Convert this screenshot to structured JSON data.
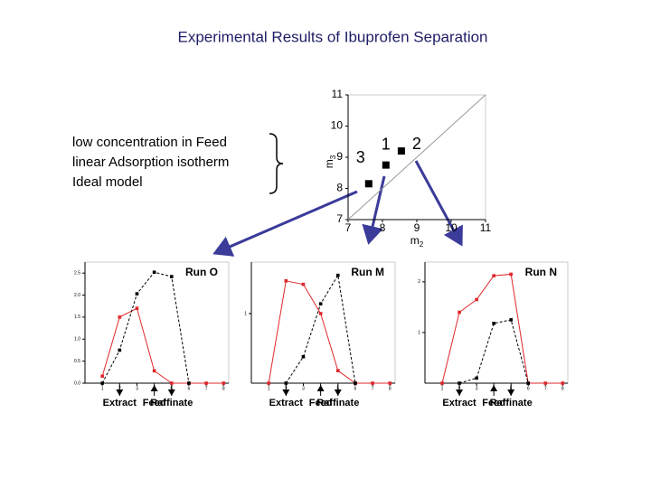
{
  "title": "Experimental Results of Ibuprofen Separation",
  "conditions": [
    "low concentration  in Feed",
    "linear Adsorption isotherm",
    "Ideal model"
  ],
  "chart_data": [
    {
      "type": "scatter",
      "x_label": {
        "base": "m",
        "sub": "2"
      },
      "y_label": {
        "base": "m",
        "sub": "3"
      },
      "xlim": [
        7,
        11
      ],
      "ylim": [
        7,
        11
      ],
      "xticks": [
        7,
        8,
        9,
        10,
        11
      ],
      "yticks": [
        7,
        8,
        9,
        10,
        11
      ],
      "diagonal": true,
      "color": "#000000",
      "x": [
        8.1,
        8.55,
        7.6
      ],
      "values": [
        8.75,
        9.2,
        8.15
      ],
      "point_labels": [
        "1",
        "2",
        "3"
      ]
    },
    {
      "type": "line",
      "title": "Run O",
      "x": [
        1,
        2,
        3,
        4,
        5,
        6,
        7,
        8
      ],
      "xlim": [
        0,
        8.3
      ],
      "xticks": [
        1,
        2,
        3,
        4,
        5,
        6,
        7,
        8
      ],
      "ylim": [
        0,
        2.75
      ],
      "yticks": [
        {
          "value": 0,
          "label": "0.0"
        },
        0.5,
        {
          "value": 1,
          "label": "1.0"
        },
        1.5,
        {
          "value": 2,
          "label": "2.0"
        },
        2.5
      ],
      "series": [
        {
          "color": "#e0262b",
          "dash": false,
          "values": [
            0.16,
            1.5,
            1.7,
            0.28,
            0,
            0,
            0,
            0
          ]
        },
        {
          "color": "#000000",
          "dash": true,
          "values": [
            0,
            0.75,
            2.03,
            2.52,
            2.42,
            0,
            null,
            null
          ]
        }
      ],
      "annotations": [
        {
          "text": "Extract",
          "x": 2,
          "arrow": "down"
        },
        {
          "text": "Feed",
          "x": 4,
          "arrow": "up"
        },
        {
          "text": "Raffinate",
          "x": 5,
          "arrow": "down"
        }
      ]
    },
    {
      "type": "line",
      "title": "Run M",
      "x": [
        1,
        2,
        3,
        4,
        5,
        6,
        7,
        8
      ],
      "xlim": [
        0,
        8.3
      ],
      "xticks": [
        1,
        2,
        3,
        4,
        5,
        6,
        7,
        8
      ],
      "ylim": [
        0,
        1.74
      ],
      "yticks": [
        1
      ],
      "series": [
        {
          "color": "#e0262b",
          "dash": false,
          "values": [
            0,
            1.47,
            1.42,
            1.0,
            0.18,
            0,
            0,
            0
          ]
        },
        {
          "color": "#000000",
          "dash": true,
          "values": [
            null,
            0,
            0.38,
            1.14,
            1.55,
            0,
            null,
            null
          ]
        }
      ],
      "annotations": [
        {
          "text": "Extract",
          "x": 2,
          "arrow": "down"
        },
        {
          "text": "Feed",
          "x": 4,
          "arrow": "up"
        },
        {
          "text": "Raffinate",
          "x": 5,
          "arrow": "down"
        }
      ]
    },
    {
      "type": "line",
      "title": "Run N",
      "x": [
        1,
        2,
        3,
        4,
        5,
        6,
        7,
        8
      ],
      "xlim": [
        0,
        8.3
      ],
      "xticks": [
        1,
        2,
        3,
        4,
        5,
        6,
        7,
        8
      ],
      "ylim": [
        0,
        2.39
      ],
      "yticks": [
        1,
        2
      ],
      "series": [
        {
          "color": "#e0262b",
          "dash": false,
          "values": [
            0,
            1.4,
            1.65,
            2.12,
            2.15,
            0,
            0,
            0
          ]
        },
        {
          "color": "#000000",
          "dash": true,
          "values": [
            null,
            0,
            0.1,
            1.18,
            1.25,
            0,
            null,
            null
          ]
        }
      ],
      "annotations": [
        {
          "text": "Extract",
          "x": 2,
          "arrow": "down"
        },
        {
          "text": "Feed",
          "x": 4,
          "arrow": "up"
        },
        {
          "text": "Raffinate",
          "x": 5,
          "arrow": "down"
        }
      ]
    }
  ]
}
